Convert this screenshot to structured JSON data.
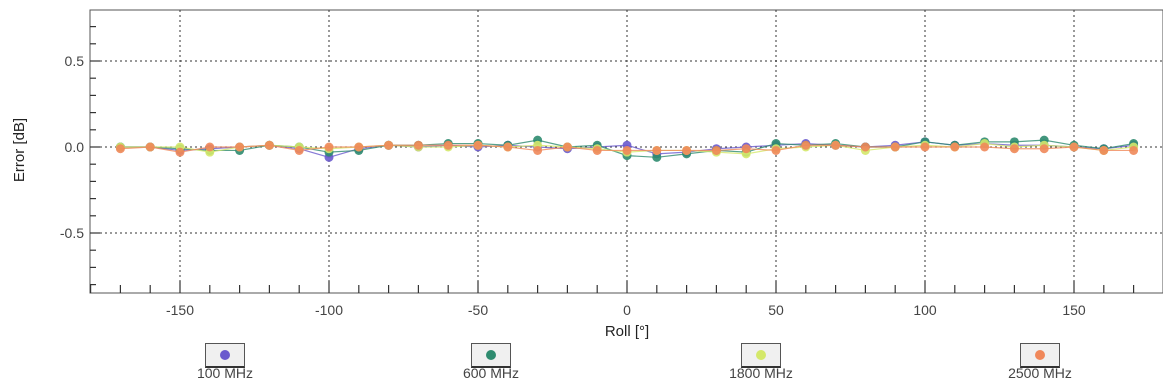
{
  "chart_data": {
    "type": "line",
    "xlabel": "Roll [°]",
    "ylabel": "Error [dB]",
    "xlim": [
      -180,
      180
    ],
    "ylim": [
      -0.8,
      0.8
    ],
    "xticks": [
      -150,
      -100,
      -50,
      0,
      50,
      100,
      150
    ],
    "xtick_labels": [
      "-150",
      "-100",
      "-50",
      "0",
      "50",
      "100",
      "150"
    ],
    "yticks": [
      -0.5,
      0.0,
      0.5
    ],
    "ytick_labels": [
      "-0.5",
      "0.0",
      "0.5"
    ],
    "grid": true,
    "legend_position": "bottom",
    "x": [
      -170,
      -160,
      -150,
      -140,
      -130,
      -120,
      -110,
      -100,
      -90,
      -80,
      -70,
      -60,
      -50,
      -40,
      -30,
      -20,
      -10,
      0,
      10,
      20,
      30,
      40,
      50,
      60,
      70,
      80,
      90,
      100,
      110,
      120,
      130,
      140,
      150,
      160,
      170,
      180
    ],
    "series": [
      {
        "name": "100 MHz",
        "color": "#6a5acd",
        "values": [
          0.0,
          0.0,
          -0.02,
          -0.01,
          0.0,
          0.01,
          -0.01,
          -0.06,
          -0.01,
          0.01,
          0.0,
          0.01,
          0.0,
          0.01,
          0.0,
          -0.01,
          0.0,
          0.01,
          -0.04,
          -0.03,
          -0.01,
          0.0,
          0.01,
          0.02,
          0.01,
          0.0,
          0.01,
          0.03,
          0.01,
          0.02,
          0.01,
          0.01,
          0.0,
          -0.01,
          0.01,
          0.0
        ]
      },
      {
        "name": "600 MHz",
        "color": "#2e8b6f",
        "values": [
          0.0,
          0.0,
          -0.01,
          -0.02,
          -0.02,
          0.01,
          0.0,
          -0.03,
          -0.02,
          0.01,
          0.01,
          0.02,
          0.02,
          0.01,
          0.04,
          0.0,
          0.01,
          -0.05,
          -0.06,
          -0.04,
          -0.02,
          -0.03,
          0.02,
          0.01,
          0.02,
          0.0,
          0.0,
          0.03,
          0.01,
          0.03,
          0.03,
          0.04,
          0.01,
          -0.01,
          0.02,
          0.01
        ]
      },
      {
        "name": "1800 MHz",
        "color": "#d4e86a",
        "values": [
          0.0,
          0.0,
          0.0,
          -0.03,
          0.0,
          0.01,
          0.0,
          -0.01,
          0.0,
          0.01,
          0.0,
          0.0,
          0.01,
          0.0,
          0.01,
          0.0,
          -0.01,
          -0.03,
          -0.02,
          -0.02,
          -0.03,
          -0.04,
          -0.01,
          0.0,
          0.01,
          -0.02,
          0.0,
          0.01,
          0.0,
          0.02,
          0.0,
          0.01,
          0.0,
          -0.02,
          0.0,
          -0.01
        ]
      },
      {
        "name": "2500 MHz",
        "color": "#f0885a",
        "values": [
          -0.01,
          0.0,
          -0.03,
          0.0,
          0.0,
          0.01,
          -0.02,
          0.0,
          0.0,
          0.01,
          0.01,
          0.01,
          0.01,
          0.0,
          -0.02,
          0.0,
          -0.02,
          -0.02,
          -0.02,
          -0.02,
          -0.02,
          -0.01,
          -0.02,
          0.01,
          0.01,
          0.0,
          0.0,
          0.0,
          0.0,
          0.0,
          -0.01,
          -0.01,
          0.0,
          -0.02,
          -0.02,
          -0.02
        ]
      }
    ]
  }
}
